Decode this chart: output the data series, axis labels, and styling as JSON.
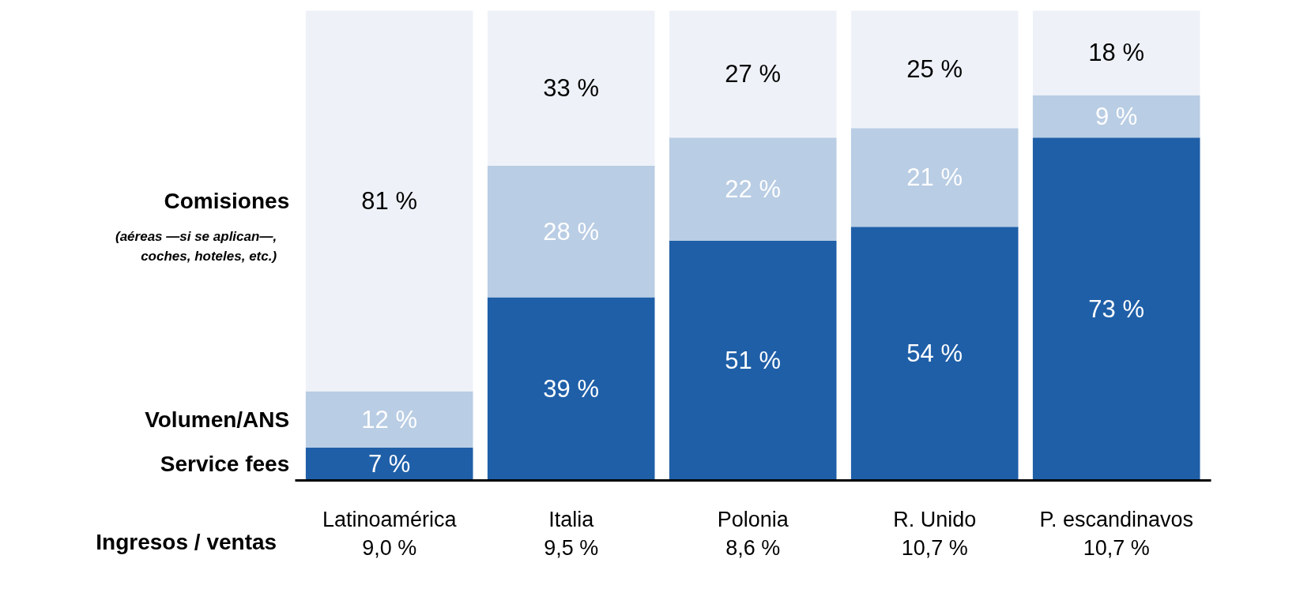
{
  "chart_data": {
    "type": "bar",
    "stacked": true,
    "xlabel": "Ingresos / ventas",
    "categories": [
      "Latinoamérica\n9,0 %",
      "Italia\n9,5 %",
      "Polonia\n8,6 %",
      "R. Unido\n10,7 %",
      "P. escandinavos\n10,7 %"
    ],
    "series": [
      {
        "name": "Service fees",
        "color": "#1f5fa8",
        "values": [
          7,
          39,
          51,
          54,
          73
        ],
        "value_labels": [
          "7 %",
          "39 %",
          "51 %",
          "54 %",
          "73 %"
        ]
      },
      {
        "name": "Volumen/ANS",
        "color": "#b9cde4",
        "values": [
          12,
          28,
          22,
          21,
          9
        ],
        "value_labels": [
          "12 %",
          "28 %",
          "22 %",
          "21 %",
          "9 %"
        ]
      },
      {
        "name": "Comisiones",
        "color": "#eef2f8",
        "values": [
          81,
          33,
          27,
          25,
          18
        ],
        "value_labels": [
          "81 %",
          "33 %",
          "27 %",
          "25 %",
          "18 %"
        ]
      }
    ],
    "annotations": [
      "(aéreas —si se aplican—,\ncoches, hoteles, etc.)"
    ],
    "legend": "left"
  }
}
